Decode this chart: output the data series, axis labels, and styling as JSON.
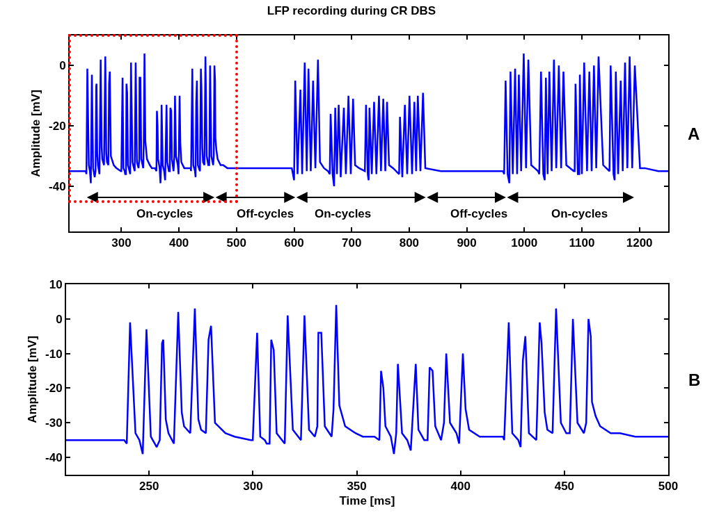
{
  "chart_data": [
    {
      "type": "line",
      "title": "LFP recording during CR DBS",
      "ylabel": "Amplitude [mV]",
      "annotations": [
        "A",
        "On-cycles",
        "Off-cycles",
        "On-cycles",
        "Off-cycles",
        "On-cycles"
      ],
      "x": [
        210,
        238,
        239.2,
        240.8,
        243.4,
        245.3,
        246.9,
        248.7,
        250.8,
        253.6,
        255.1,
        256.2,
        256.8,
        258,
        259.3,
        261.9,
        264,
        265.7,
        266.8,
        269.8,
        272,
        273.7,
        275,
        277.3,
        278.6,
        279.8,
        281.7,
        286.7,
        291.2,
        299,
        299.9,
        302,
        303.5,
        305.7,
        306.6,
        308,
        308.8,
        310,
        311.4,
        315.3,
        316.7,
        319.2,
        323.1,
        324.8,
        327,
        329.8,
        331,
        331.5,
        332.9,
        334.6,
        337.9,
        338.8,
        340.1,
        341.6,
        344.4,
        349.4,
        352.9,
        358.5,
        360.9,
        361.7,
        362.8,
        363.8,
        366.4,
        367.9,
        369,
        369.8,
        371.8,
        374.3,
        376,
        378.4,
        379.7,
        382.5,
        384.1,
        385.1,
        386.5,
        387.8,
        390.6,
        392,
        393.1,
        394.9,
        398,
        399.3,
        401.1,
        402.4,
        404.1,
        409.2,
        414.8,
        420.4,
        421,
        423.2,
        424.9,
        427.8,
        428.9,
        430,
        431.2,
        432.9,
        436.5,
        438.1,
        439,
        440.5,
        441.8,
        444.3,
        446,
        448.3,
        450.9,
        452.6,
        454.1,
        456.3,
        459.4,
        460.5,
        461.6,
        462.7,
        463.3,
        465,
        467.2,
        472.3,
        476.8,
        484.1,
        498.2,
        500,
        540,
        596,
        600,
        602,
        606,
        611,
        614,
        618.5,
        622,
        625,
        629,
        633,
        637,
        641.5,
        645,
        652,
        659,
        662,
        663.5,
        667,
        669.5,
        671.5,
        674.5,
        677.5,
        681,
        686.5,
        690,
        694.5,
        698.5,
        702.5,
        706,
        713,
        723,
        725,
        728,
        729.5,
        731,
        735,
        739,
        743,
        747.5,
        751,
        755,
        758.5,
        761.5,
        765,
        772,
        782.5,
        784,
        788,
        792.5,
        796.5,
        800.5,
        805,
        809,
        812,
        815,
        819.5,
        824,
        828,
        855,
        924,
        963,
        965,
        967.5,
        971,
        974,
        976,
        980,
        984,
        987.5,
        990.5,
        994.5,
        999,
        1003,
        1007,
        1012,
        1018,
        1024,
        1026,
        1029,
        1033,
        1035.5,
        1037.5,
        1040.5,
        1043.5,
        1047.5,
        1051.5,
        1055.5,
        1060,
        1064,
        1068,
        1073,
        1086,
        1087.5,
        1089,
        1093,
        1095.5,
        1096.5,
        1100,
        1104,
        1109,
        1113,
        1117,
        1121,
        1125,
        1129,
        1137,
        1148,
        1150,
        1155,
        1157,
        1159,
        1163,
        1167.5,
        1171,
        1175,
        1179,
        1183,
        1187.5,
        1192,
        1201,
        1209,
        1233,
        1250
      ],
      "series": [
        {
          "color": "#0000ff",
          "values": [
            -35,
            -35,
            -36,
            -1,
            -33,
            -35,
            -39,
            -3,
            -34,
            -37,
            -35,
            -7,
            -6,
            -29,
            -33,
            -36,
            2,
            -27,
            -31,
            -33,
            3,
            -29,
            -32,
            -33,
            -6,
            -2,
            -30,
            -33,
            -34,
            -35,
            -35,
            -4,
            -34,
            -35,
            -36,
            -36,
            -6,
            -9,
            -33,
            -36,
            1,
            -32,
            -35,
            1,
            -32,
            -34,
            -31,
            -4,
            -4,
            -31,
            -34,
            -26,
            4,
            -25,
            -31,
            -33,
            -34,
            -34,
            -35,
            -15,
            -20,
            -31,
            -34,
            -39,
            -33,
            -13,
            -33,
            -35,
            -38,
            -13,
            -32,
            -35,
            -35,
            -14,
            -15,
            -31,
            -35,
            -30,
            -10,
            -30,
            -33,
            -36,
            -10,
            -26,
            -32,
            -34,
            -34,
            -34,
            -35,
            -1,
            -33,
            -35,
            -37,
            -12,
            -5,
            -33,
            -35,
            -1,
            -7,
            -27,
            -32,
            -33,
            3,
            -30,
            -33,
            -33,
            0,
            -30,
            -33,
            -30,
            0,
            -5,
            -24,
            -28,
            -31,
            -33,
            -33,
            -34,
            -34,
            -34,
            -34,
            -34,
            -38,
            -5,
            -36,
            -8,
            -36,
            1,
            -35,
            -1,
            -35,
            -5,
            -34,
            2,
            -32,
            -34,
            -35,
            -36,
            -16,
            -36,
            -40,
            -14,
            -36,
            -13,
            -37,
            -14,
            -36,
            -10,
            -36,
            -11,
            -33,
            -34,
            -35,
            -13,
            -36,
            -38,
            -14,
            -36,
            -12,
            -36,
            -10,
            -35,
            -11,
            -35,
            -12,
            -33,
            -34,
            -36,
            -17,
            -37,
            -13,
            -36,
            -10,
            -36,
            -12,
            -35,
            -10,
            -35,
            -9,
            -34,
            -35,
            -35,
            -35,
            -36,
            -5,
            -36,
            -39,
            -2,
            -36,
            -1,
            -36,
            -3,
            -35,
            4,
            -34,
            2,
            -33,
            -34,
            -35,
            -36,
            -2,
            -36,
            -38,
            -4,
            -36,
            -2,
            -35,
            2,
            -34,
            0,
            -34,
            -2,
            -33,
            -35,
            -35,
            -6,
            -36,
            -36,
            -3,
            -36,
            1,
            -35,
            -2,
            -35,
            0,
            -34,
            3,
            -33,
            -35,
            0,
            -36,
            -38,
            -2,
            -36,
            -5,
            -35,
            1,
            -34,
            3,
            -34,
            0,
            -34,
            -34,
            -35,
            -35
          ]
        }
      ],
      "xlim": [
        210,
        1250
      ],
      "ylim": [
        -55,
        10
      ],
      "xticks": [
        300,
        400,
        500,
        600,
        700,
        800,
        900,
        1000,
        1100,
        1200
      ],
      "yticks": [
        -40,
        -20,
        0
      ],
      "grid": false,
      "marker": "none",
      "line_style": "solid"
    },
    {
      "type": "line",
      "xlabel": "Time [ms]",
      "ylabel": "Amplitude [mV]",
      "annotations": [
        "B"
      ],
      "x": [
        210,
        238,
        239.2,
        240.8,
        243.4,
        245.3,
        246.9,
        248.7,
        250.8,
        253.6,
        255.1,
        256.2,
        256.8,
        258,
        259.3,
        261.9,
        264,
        265.7,
        266.8,
        269.8,
        272,
        273.7,
        275,
        277.3,
        278.6,
        279.8,
        281.7,
        286.7,
        291.2,
        299,
        299.9,
        302,
        303.5,
        305.7,
        306.6,
        308,
        308.8,
        310,
        311.4,
        315.3,
        316.7,
        319.2,
        323.1,
        324.8,
        327,
        329.8,
        331,
        331.5,
        332.9,
        334.6,
        337.9,
        338.8,
        340.1,
        341.6,
        344.4,
        349.4,
        352.9,
        358.5,
        360.9,
        361.7,
        362.8,
        363.8,
        366.4,
        367.9,
        369,
        369.8,
        371.8,
        374.3,
        376,
        378.4,
        379.7,
        382.5,
        384.1,
        385.1,
        386.5,
        387.8,
        390.6,
        392,
        393.1,
        394.9,
        398,
        399.3,
        401.1,
        402.4,
        404.1,
        409.2,
        414.8,
        420.4,
        421,
        423.2,
        424.9,
        427.8,
        428.9,
        430,
        431.2,
        432.9,
        436.5,
        438.1,
        439,
        440.5,
        441.8,
        444.3,
        446,
        448.3,
        450.9,
        452.6,
        454.1,
        456.3,
        459.4,
        460.5,
        461.6,
        462.7,
        463.3,
        465,
        467.2,
        472.3,
        476.8,
        484.1,
        498.2,
        500
      ],
      "series": [
        {
          "color": "#0000ff",
          "values": [
            -35,
            -35,
            -36,
            -1,
            -33,
            -35,
            -39,
            -3,
            -34,
            -37,
            -35,
            -7,
            -6,
            -29,
            -33,
            -36,
            2,
            -27,
            -31,
            -33,
            3,
            -29,
            -32,
            -33,
            -6,
            -2,
            -30,
            -33,
            -34,
            -35,
            -35,
            -4,
            -34,
            -35,
            -36,
            -36,
            -6,
            -9,
            -33,
            -36,
            1,
            -32,
            -35,
            1,
            -32,
            -34,
            -31,
            -4,
            -4,
            -31,
            -34,
            -26,
            4,
            -25,
            -31,
            -33,
            -34,
            -34,
            -35,
            -15,
            -20,
            -31,
            -34,
            -39,
            -33,
            -13,
            -33,
            -35,
            -38,
            -13,
            -32,
            -35,
            -35,
            -14,
            -15,
            -31,
            -35,
            -30,
            -10,
            -30,
            -33,
            -36,
            -10,
            -26,
            -32,
            -34,
            -34,
            -34,
            -35,
            -1,
            -33,
            -35,
            -37,
            -12,
            -5,
            -33,
            -35,
            -1,
            -7,
            -27,
            -32,
            -33,
            3,
            -30,
            -33,
            -33,
            0,
            -30,
            -33,
            -30,
            0,
            -5,
            -24,
            -28,
            -31,
            -33,
            -33,
            -34,
            -34,
            -34
          ]
        }
      ],
      "xlim": [
        210,
        500
      ],
      "ylim": [
        -45,
        10
      ],
      "xticks": [
        250,
        300,
        350,
        400,
        450,
        500
      ],
      "yticks": [
        -40,
        -30,
        -20,
        -10,
        0,
        10
      ],
      "grid": false,
      "marker": "none",
      "line_style": "solid"
    }
  ]
}
